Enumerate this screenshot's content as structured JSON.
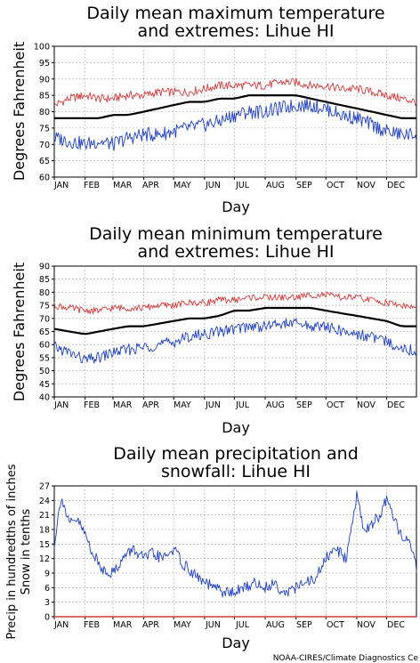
{
  "credit": "NOAA-CIRES/Climate Diagnostics Ce",
  "months": [
    "JAN",
    "FEB",
    "MAR",
    "APR",
    "MAY",
    "JUN",
    "JUL",
    "AUG",
    "SEP",
    "OCT",
    "NOV",
    "DEC"
  ],
  "colors": {
    "mean": "#000000",
    "high": "#d03c3c",
    "low": "#1f3fbf",
    "precip": "#1f3fbf",
    "snow": "#d03c3c",
    "grid": "#888888"
  },
  "chart_data": [
    {
      "type": "line",
      "title_line1": "Daily mean maximum temperature",
      "title_line2": "and extremes: Lihue HI",
      "xlabel": "Day",
      "ylabel": "Degrees Fahrenheit",
      "ylim": [
        60,
        100
      ],
      "yticks": [
        "60",
        "65",
        "70",
        "75",
        "80",
        "85",
        "90",
        "95",
        "100"
      ],
      "x_days": [
        1,
        16,
        32,
        46,
        60,
        75,
        91,
        106,
        121,
        136,
        152,
        167,
        182,
        197,
        213,
        228,
        244,
        259,
        274,
        289,
        305,
        320,
        335,
        350,
        365
      ],
      "series": [
        {
          "role": "high",
          "values": [
            82,
            84,
            85,
            84,
            84,
            85,
            85,
            86,
            86,
            86,
            87,
            88,
            88,
            88,
            88,
            89,
            89,
            88,
            88,
            87,
            87,
            86,
            85,
            84,
            83
          ]
        },
        {
          "role": "mean",
          "values": [
            78,
            78,
            78,
            78,
            79,
            79,
            80,
            81,
            82,
            83,
            83,
            84,
            84,
            85,
            85,
            85,
            85,
            84,
            83,
            82,
            81,
            80,
            79,
            78,
            78
          ]
        },
        {
          "role": "low",
          "values": [
            72,
            71,
            70,
            71,
            70,
            72,
            73,
            73,
            74,
            75,
            76,
            77,
            79,
            80,
            80,
            81,
            82,
            82,
            81,
            79,
            78,
            76,
            74,
            73,
            73
          ]
        }
      ]
    },
    {
      "type": "line",
      "title_line1": "Daily mean minimum temperature",
      "title_line2": "and extremes: Lihue HI",
      "xlabel": "Day",
      "ylabel": "Degrees Fahrenheit",
      "ylim": [
        40,
        90
      ],
      "yticks": [
        "40",
        "45",
        "50",
        "55",
        "60",
        "65",
        "70",
        "75",
        "80",
        "85",
        "90"
      ],
      "x_days": [
        1,
        16,
        32,
        46,
        60,
        75,
        91,
        106,
        121,
        136,
        152,
        167,
        182,
        197,
        213,
        228,
        244,
        259,
        274,
        289,
        305,
        320,
        335,
        350,
        365
      ],
      "series": [
        {
          "role": "high",
          "values": [
            75,
            74,
            73,
            73,
            74,
            74,
            74,
            75,
            75,
            76,
            76,
            77,
            77,
            78,
            78,
            78,
            78,
            79,
            79,
            78,
            78,
            77,
            76,
            75,
            74
          ]
        },
        {
          "role": "mean",
          "values": [
            66,
            65,
            64,
            65,
            66,
            67,
            67,
            68,
            69,
            70,
            70,
            71,
            73,
            73,
            74,
            74,
            74,
            74,
            73,
            72,
            71,
            70,
            69,
            67,
            67
          ]
        },
        {
          "role": "low",
          "values": [
            59,
            57,
            54,
            55,
            57,
            58,
            59,
            60,
            61,
            63,
            64,
            65,
            66,
            67,
            67,
            68,
            68,
            67,
            67,
            65,
            64,
            63,
            61,
            59,
            57
          ]
        }
      ]
    },
    {
      "type": "line",
      "title_line1": "Daily mean precipitation and",
      "title_line2": "snowfall: Lihue HI",
      "xlabel": "Day",
      "ylabel_line1": "Precip in hundredths of inches",
      "ylabel_line2": "Snow in tenths",
      "ylim": [
        0,
        27
      ],
      "yticks": [
        "0",
        "3",
        "6",
        "9",
        "12",
        "15",
        "18",
        "21",
        "24",
        "27"
      ],
      "x_days": [
        1,
        8,
        16,
        24,
        32,
        40,
        48,
        60,
        70,
        80,
        91,
        100,
        110,
        121,
        130,
        140,
        152,
        162,
        172,
        182,
        192,
        202,
        213,
        222,
        232,
        244,
        254,
        264,
        274,
        284,
        294,
        305,
        312,
        320,
        328,
        335,
        342,
        350,
        358,
        365
      ],
      "series": [
        {
          "role": "precip",
          "values": [
            15,
            25,
            19,
            20,
            17,
            13,
            10,
            9,
            12,
            14,
            12,
            13,
            12,
            14,
            11,
            9,
            7,
            6,
            5,
            5,
            6,
            7,
            6,
            7,
            5,
            6,
            7,
            8,
            12,
            14,
            12,
            25,
            18,
            19,
            21,
            24,
            20,
            17,
            15,
            10
          ]
        },
        {
          "role": "snow",
          "values": [
            0,
            0,
            0,
            0,
            0,
            0,
            0,
            0,
            0,
            0,
            0,
            0,
            0,
            0,
            0,
            0,
            0,
            0,
            0,
            0,
            0,
            0,
            0,
            0,
            0,
            0,
            0,
            0,
            0,
            0,
            0,
            0,
            0,
            0,
            0,
            0,
            0,
            0,
            0,
            0
          ]
        }
      ]
    }
  ]
}
